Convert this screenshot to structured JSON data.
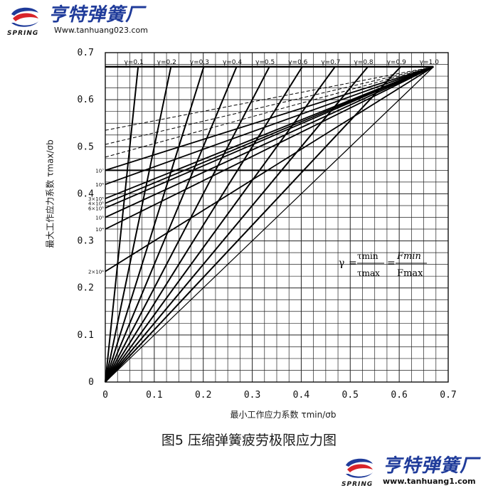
{
  "header": {
    "brand_cn": "亨特弹簧厂",
    "brand_en": "SPRING",
    "url": "Www.tanhuang023.com"
  },
  "footer": {
    "brand_cn": "亨特弹簧厂",
    "brand_en": "SPRING",
    "url": "www.tanhuang1.com"
  },
  "colors": {
    "brand_blue": "#1f3b9a",
    "logo_red": "#d8232a",
    "ink": "#111111"
  },
  "caption": "图5 压缩弹簧疲劳极限应力图",
  "formula": {
    "gamma": "γ",
    "tau_min": "τmin",
    "tau_max": "τmax",
    "f_min": "Fmin",
    "f_max": "Fmax"
  },
  "chart_data": {
    "type": "line",
    "xlabel": "最小工作应力系数 τmin/σb",
    "ylabel": "最大工作应力系数 τmax/σb",
    "xlim": [
      0,
      0.7
    ],
    "ylim": [
      0,
      0.7
    ],
    "grid": true,
    "x_ticks": [
      "0",
      "0.1",
      "0.2",
      "0.3",
      "0.4",
      "0.5",
      "0.6",
      "0.7"
    ],
    "y_ticks": [
      "0",
      "0.1",
      "0.2",
      "0.3",
      "0.4",
      "0.5",
      "0.6",
      "0.7"
    ],
    "gamma_lines": [
      {
        "name": "γ=0.1",
        "gamma": 0.1
      },
      {
        "name": "γ=0.2",
        "gamma": 0.2
      },
      {
        "name": "γ=0.3",
        "gamma": 0.3
      },
      {
        "name": "γ=0.4",
        "gamma": 0.4
      },
      {
        "name": "γ=0.5",
        "gamma": 0.5
      },
      {
        "name": "γ=0.6",
        "gamma": 0.6
      },
      {
        "name": "γ=0.7",
        "gamma": 0.7
      },
      {
        "name": "γ=0.8",
        "gamma": 0.8
      },
      {
        "name": "γ=0.9",
        "gamma": 0.9
      },
      {
        "name": "γ=1.0",
        "gamma": 1.0
      }
    ],
    "max_stress_limit": 0.67,
    "apex": [
      0.67,
      0.67
    ],
    "cycle_lines": [
      {
        "name": "10⁷",
        "y0": 0.45,
        "solid": true
      },
      {
        "name": "10⁶",
        "y0": 0.42,
        "solid": true
      },
      {
        "name": "3×10⁵",
        "y0": 0.39,
        "solid": true
      },
      {
        "name": "4×10⁵",
        "y0": 0.38,
        "solid": true
      },
      {
        "name": "6×10⁵",
        "y0": 0.37,
        "solid": true
      },
      {
        "name": "10⁵",
        "y0": 0.35,
        "solid": true
      },
      {
        "name": "10⁴",
        "y0": 0.325,
        "solid": true
      },
      {
        "name": "2×10⁴",
        "y0": 0.235,
        "solid": true
      },
      {
        "name": "",
        "y0": 0.478,
        "solid": false
      },
      {
        "name": "",
        "y0": 0.505,
        "solid": false
      },
      {
        "name": "",
        "y0": 0.535,
        "solid": false
      }
    ],
    "cycle_line_10_7_horizontal_end_x": 0.45
  }
}
